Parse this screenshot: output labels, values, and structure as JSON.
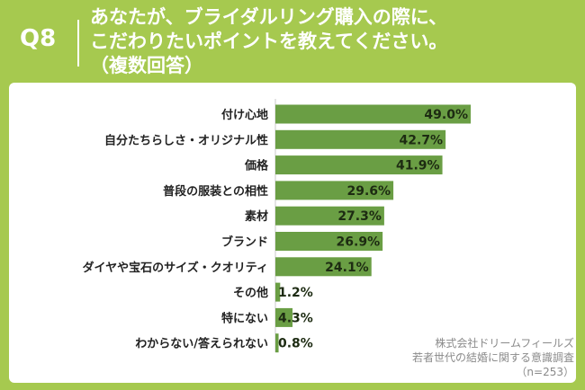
{
  "header": {
    "q_label": "Q8",
    "title_lines": [
      "あなたが、ブライダルリング購入の際に、",
      "こだわりたいポイントを教えてください。",
      "（複数回答）"
    ]
  },
  "source": {
    "lines": [
      "株式会社ドリームフィールズ",
      "若者世代の結婚に関する意識調査",
      "（n=253）"
    ]
  },
  "colors": {
    "bar": "#6a9e44",
    "background": "#a6c94f",
    "panel": "#ffffff"
  },
  "chart_data": {
    "type": "bar",
    "orientation": "horizontal",
    "categories": [
      "付け心地",
      "自分たちらしさ・オリジナル性",
      "価格",
      "普段の服装との相性",
      "素材",
      "ブランド",
      "ダイヤや宝石のサイズ・クオリティ",
      "その他",
      "特にない",
      "わからない/答えられない"
    ],
    "values": [
      49.0,
      42.7,
      41.9,
      29.6,
      27.3,
      26.9,
      24.1,
      1.2,
      4.3,
      0.8
    ],
    "data_labels": [
      "49.0%",
      "42.7%",
      "41.9%",
      "29.6%",
      "27.3%",
      "26.9%",
      "24.1%",
      "1.2%",
      "4.3%",
      "0.8%"
    ],
    "unit": "%",
    "xlim": [
      0,
      70
    ],
    "legend": "none",
    "grid": false
  }
}
